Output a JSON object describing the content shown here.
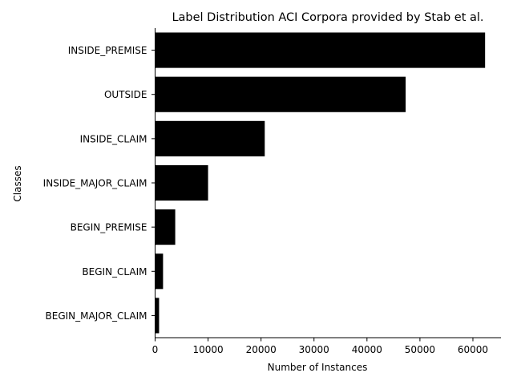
{
  "chart_data": {
    "type": "bar",
    "orientation": "horizontal",
    "title": "Label Distribution ACI Corpora provided by Stab et al.",
    "xlabel": "Number of Instances",
    "ylabel": "Classes",
    "categories": [
      "INSIDE_PREMISE",
      "OUTSIDE",
      "INSIDE_CLAIM",
      "INSIDE_MAJOR_CLAIM",
      "BEGIN_PREMISE",
      "BEGIN_CLAIM",
      "BEGIN_MAJOR_CLAIM"
    ],
    "values": [
      62300,
      47300,
      20700,
      10000,
      3800,
      1500,
      750
    ],
    "xlim": [
      0,
      65300
    ],
    "xticks": [
      0,
      10000,
      20000,
      30000,
      40000,
      50000,
      60000
    ],
    "xtick_labels": [
      "0",
      "10000",
      "20000",
      "30000",
      "40000",
      "50000",
      "60000"
    ],
    "bar_color": "#000000",
    "grid": false
  }
}
